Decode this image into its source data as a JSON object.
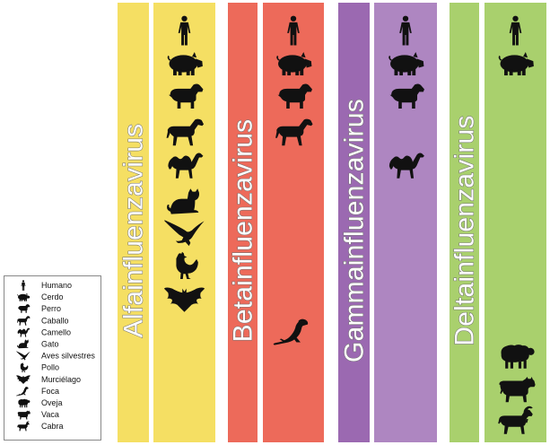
{
  "columns": [
    {
      "label": "Alfainfluenzavirus",
      "colors": {
        "label_band": "#f5df63",
        "species_band": "#f5df63"
      },
      "hosts": [
        "human",
        "pig",
        "dog",
        "horse",
        "camel",
        "cat",
        "wild-bird",
        "chicken",
        "bat"
      ]
    },
    {
      "label": "Betainfluenzavirus",
      "colors": {
        "label_band": "#ed6a5a",
        "species_band": "#ed6a5a"
      },
      "hosts": [
        "human",
        "pig",
        "dog",
        "horse",
        "seal"
      ]
    },
    {
      "label": "Gammainfluenzavirus",
      "colors": {
        "label_band": "#9b69b1",
        "species_band": "#ae86c1"
      },
      "hosts": [
        "human",
        "pig",
        "dog",
        "camel"
      ]
    },
    {
      "label": "Deltainfluenzavirus",
      "colors": {
        "label_band": "#a9d06d",
        "species_band": "#a9d06d"
      },
      "hosts": [
        "human",
        "pig",
        "sheep",
        "cow",
        "goat"
      ]
    }
  ],
  "legend": [
    {
      "icon": "human",
      "label": "Humano"
    },
    {
      "icon": "pig",
      "label": "Cerdo"
    },
    {
      "icon": "dog",
      "label": "Perro"
    },
    {
      "icon": "horse",
      "label": "Caballo"
    },
    {
      "icon": "camel",
      "label": "Camello"
    },
    {
      "icon": "cat",
      "label": "Gato"
    },
    {
      "icon": "wild-bird",
      "label": "Aves silvestres"
    },
    {
      "icon": "chicken",
      "label": "Pollo"
    },
    {
      "icon": "bat",
      "label": "Murciélago"
    },
    {
      "icon": "seal",
      "label": "Foca"
    },
    {
      "icon": "sheep",
      "label": "Oveja"
    },
    {
      "icon": "cow",
      "label": "Vaca"
    },
    {
      "icon": "goat",
      "label": "Cabra"
    }
  ],
  "colors": {
    "icon_fill": "#111111",
    "legend_border": "#888888"
  }
}
